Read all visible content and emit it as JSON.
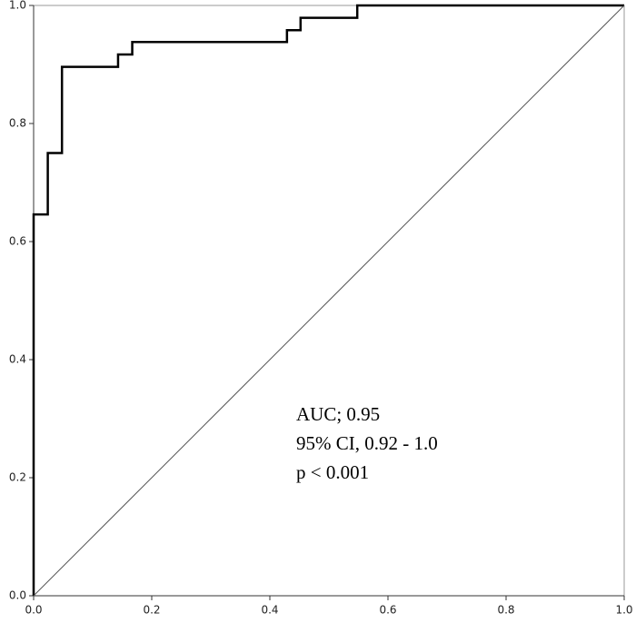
{
  "chart_data": {
    "type": "line",
    "series": [
      {
        "color": "#000000",
        "width": 2.5,
        "x": [
          0,
          0,
          0.024,
          0.024,
          0.048,
          0.048,
          0.143,
          0.143,
          0.167,
          0.167,
          0.429,
          0.429,
          0.452,
          0.452,
          0.548,
          0.548,
          1
        ],
        "values": [
          0,
          0.646,
          0.646,
          0.75,
          0.75,
          0.896,
          0.896,
          0.917,
          0.917,
          0.938,
          0.938,
          0.958,
          0.958,
          0.979,
          0.979,
          1,
          1
        ]
      },
      {
        "color": "#555555",
        "width": 1,
        "x": [
          0,
          1
        ],
        "values": [
          0,
          1
        ]
      }
    ],
    "xlim": [
      0,
      1
    ],
    "ylim": [
      0,
      1
    ],
    "xticks": [
      {
        "value": 0,
        "label": "0.0"
      },
      0.2,
      0.4,
      0.6,
      0.8,
      {
        "value": 1,
        "label": "1.0"
      }
    ],
    "yticks": [
      {
        "value": 0,
        "label": "0.0"
      },
      0.2,
      0.4,
      0.6,
      0.8,
      {
        "value": 1,
        "label": "1.0"
      }
    ],
    "grid": false,
    "annotations": [
      "AUC; 0.95",
      "95% CI, 0.92 - 1.0",
      "p < 0.001"
    ]
  }
}
